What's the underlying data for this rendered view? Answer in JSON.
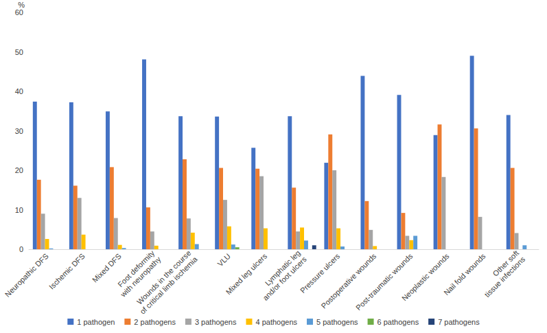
{
  "chart_data": {
    "type": "bar",
    "y_label": "%",
    "categories": [
      "Neuropathic DFS",
      "Ischemic DFS",
      "Mixed DFS",
      "Foot deformity\nwith neuropathy",
      "Wounds in the course\nof critical limb ischemia",
      "VLU",
      "Mixed leg ulcers",
      "Lymphatic leg\nand/or foot ulcers",
      "Pressure ulcers",
      "Postoperative wounds",
      "Post-traumatic wounds",
      "Neoplastic wounds",
      "Nail fold wounds",
      "Other soft\ntissue infections"
    ],
    "series": [
      {
        "name": "1 pathogen",
        "color": "#4472C4",
        "values": [
          37.4,
          37.2,
          34.9,
          48.1,
          33.7,
          33.6,
          25.7,
          33.7,
          21.9,
          43.9,
          39.1,
          28.9,
          49.0,
          34.0
        ]
      },
      {
        "name": "2 pathogens",
        "color": "#ED7D31",
        "values": [
          17.6,
          16.1,
          20.8,
          10.6,
          22.8,
          20.6,
          20.4,
          15.6,
          29.1,
          12.2,
          9.2,
          31.6,
          30.6,
          20.6
        ]
      },
      {
        "name": "3 pathogens",
        "color": "#A5A5A5",
        "values": [
          9.0,
          13.0,
          7.9,
          4.5,
          7.8,
          12.5,
          18.5,
          4.5,
          20.0,
          4.9,
          3.4,
          18.3,
          8.2,
          4.1
        ]
      },
      {
        "name": "4 pathogens",
        "color": "#FFC000",
        "values": [
          2.6,
          3.7,
          1.1,
          0.9,
          4.2,
          5.8,
          5.3,
          5.5,
          5.3,
          0.8,
          2.3,
          0,
          0,
          0
        ]
      },
      {
        "name": "5 pathogens",
        "color": "#5B9BD5",
        "values": [
          0.2,
          0,
          0.3,
          0,
          1.3,
          1.2,
          0,
          2.2,
          0.7,
          0,
          3.4,
          0,
          0,
          1.0
        ]
      },
      {
        "name": "6 pathogens",
        "color": "#70AD47",
        "values": [
          0,
          0,
          0,
          0,
          0,
          0.5,
          0,
          0,
          0,
          0,
          0,
          0,
          0,
          0
        ]
      },
      {
        "name": "7 pathogens",
        "color": "#264478",
        "values": [
          0,
          0,
          0,
          0,
          0,
          0,
          0,
          1.0,
          0,
          0,
          0,
          0,
          0,
          0
        ]
      }
    ],
    "ylim": [
      0,
      60
    ],
    "yticks": [
      0,
      10,
      20,
      30,
      40,
      50,
      60
    ],
    "grid": false,
    "legend": "bottom"
  }
}
